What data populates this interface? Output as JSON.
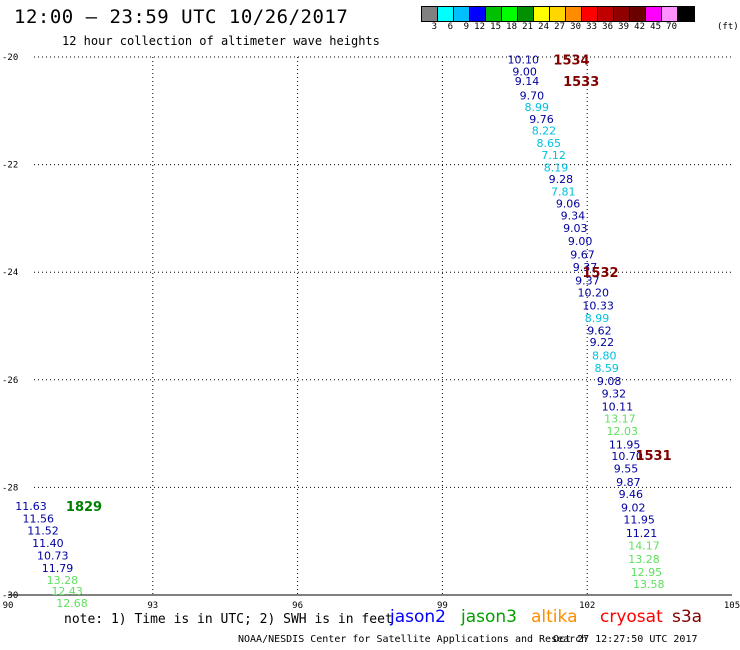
{
  "header": {
    "title": "12:00 – 23:59 UTC 10/26/2017",
    "subtitle": "12 hour collection of altimeter wave heights"
  },
  "colorbar": {
    "colors": [
      "#808080",
      "#00ffff",
      "#00bfff",
      "#0000ff",
      "#00c000",
      "#00ff00",
      "#009000",
      "#ffff00",
      "#ffd700",
      "#ff8c00",
      "#ff0000",
      "#c00000",
      "#900000",
      "#6b0000",
      "#ff00ff",
      "#ff90ff",
      "#000000"
    ],
    "labels": [
      "3",
      "6",
      "9",
      "12",
      "15",
      "18",
      "21",
      "24",
      "27",
      "30",
      "33",
      "36",
      "39",
      "42",
      "45",
      "70"
    ],
    "unit": "(ft)"
  },
  "axes": {
    "x_ticks": [
      90,
      93,
      96,
      99,
      102,
      105
    ],
    "y_ticks": [
      -20,
      -22,
      -24,
      -26,
      -28,
      -30
    ],
    "x_range": [
      90,
      105
    ],
    "y_range": [
      -30,
      -20
    ]
  },
  "track_labels": [
    {
      "text": "1534",
      "lon": 101.3,
      "lat": -20.05
    },
    {
      "text": "1533",
      "lon": 101.5,
      "lat": -20.45
    },
    {
      "text": "1532",
      "lon": 101.9,
      "lat": -24.0
    },
    {
      "text": "1531",
      "lon": 103.0,
      "lat": -27.4
    },
    {
      "text": "1829",
      "lon": 91.2,
      "lat": -28.35
    }
  ],
  "measurements": [
    {
      "v": "10.10",
      "lon": 100.35,
      "lat": -20.05
    },
    {
      "v": "9.00",
      "lon": 100.45,
      "lat": -20.27
    },
    {
      "v": "9.14",
      "lon": 100.5,
      "lat": -20.45
    },
    {
      "v": "9.70",
      "lon": 100.6,
      "lat": -20.72
    },
    {
      "v": "8.99",
      "lon": 100.7,
      "lat": -20.93
    },
    {
      "v": "9.76",
      "lon": 100.8,
      "lat": -21.15
    },
    {
      "v": "8.22",
      "lon": 100.85,
      "lat": -21.37
    },
    {
      "v": "8.65",
      "lon": 100.95,
      "lat": -21.6
    },
    {
      "v": "7.12",
      "lon": 101.05,
      "lat": -21.82
    },
    {
      "v": "8.19",
      "lon": 101.1,
      "lat": -22.05
    },
    {
      "v": "9.28",
      "lon": 101.2,
      "lat": -22.27
    },
    {
      "v": "7.81",
      "lon": 101.25,
      "lat": -22.5
    },
    {
      "v": "9.06",
      "lon": 101.35,
      "lat": -22.72
    },
    {
      "v": "9.34",
      "lon": 101.45,
      "lat": -22.95
    },
    {
      "v": "9.03",
      "lon": 101.5,
      "lat": -23.18
    },
    {
      "v": "9.00",
      "lon": 101.6,
      "lat": -23.42
    },
    {
      "v": "9.67",
      "lon": 101.65,
      "lat": -23.67
    },
    {
      "v": "9.37",
      "lon": 101.7,
      "lat": -23.9
    },
    {
      "v": "9.37",
      "lon": 101.75,
      "lat": -24.15
    },
    {
      "v": "10.20",
      "lon": 101.8,
      "lat": -24.38
    },
    {
      "v": "10.33",
      "lon": 101.9,
      "lat": -24.62
    },
    {
      "v": "8.99",
      "lon": 101.95,
      "lat": -24.85
    },
    {
      "v": "9.62",
      "lon": 102.0,
      "lat": -25.08
    },
    {
      "v": "9.22",
      "lon": 102.05,
      "lat": -25.3
    },
    {
      "v": "8.80",
      "lon": 102.1,
      "lat": -25.55
    },
    {
      "v": "8.59",
      "lon": 102.15,
      "lat": -25.78
    },
    {
      "v": "9.08",
      "lon": 102.2,
      "lat": -26.02
    },
    {
      "v": "9.32",
      "lon": 102.3,
      "lat": -26.25
    },
    {
      "v": "10.11",
      "lon": 102.3,
      "lat": -26.5
    },
    {
      "v": "13.17",
      "lon": 102.35,
      "lat": -26.72
    },
    {
      "v": "12.03",
      "lon": 102.4,
      "lat": -26.95
    },
    {
      "v": "11.95",
      "lon": 102.45,
      "lat": -27.2
    },
    {
      "v": "10.70",
      "lon": 102.5,
      "lat": -27.42
    },
    {
      "v": "9.55",
      "lon": 102.55,
      "lat": -27.65
    },
    {
      "v": "9.87",
      "lon": 102.6,
      "lat": -27.9
    },
    {
      "v": "9.46",
      "lon": 102.65,
      "lat": -28.12
    },
    {
      "v": "9.02",
      "lon": 102.7,
      "lat": -28.37
    },
    {
      "v": "11.95",
      "lon": 102.75,
      "lat": -28.6
    },
    {
      "v": "11.21",
      "lon": 102.8,
      "lat": -28.85
    },
    {
      "v": "14.17",
      "lon": 102.85,
      "lat": -29.08
    },
    {
      "v": "13.28",
      "lon": 102.85,
      "lat": -29.33
    },
    {
      "v": "12.95",
      "lon": 102.9,
      "lat": -29.57
    },
    {
      "v": "13.58",
      "lon": 102.95,
      "lat": -29.8
    },
    {
      "v": "11.63",
      "lon": 90.15,
      "lat": -28.35
    },
    {
      "v": "11.56",
      "lon": 90.3,
      "lat": -28.58
    },
    {
      "v": "11.52",
      "lon": 90.4,
      "lat": -28.8
    },
    {
      "v": "11.40",
      "lon": 90.5,
      "lat": -29.03
    },
    {
      "v": "10.73",
      "lon": 90.6,
      "lat": -29.27
    },
    {
      "v": "11.79",
      "lon": 90.7,
      "lat": -29.5
    },
    {
      "v": "13.28",
      "lon": 90.8,
      "lat": -29.72
    },
    {
      "v": "12.43",
      "lon": 90.9,
      "lat": -29.93
    },
    {
      "v": "12.68",
      "lon": 91.0,
      "lat": -30.15
    }
  ],
  "footer": {
    "note": "note: 1) Time is in UTC; 2) SWH is in feet",
    "satellites": [
      {
        "name": "jason2",
        "color": "#0000ff"
      },
      {
        "name": "jason3",
        "color": "#00a000"
      },
      {
        "name": "altika",
        "color": "#ff8c00"
      },
      {
        "name": "cryosat",
        "color": "#ff0000"
      },
      {
        "name": "s3a",
        "color": "#800000"
      }
    ],
    "credit": "NOAA/NESDIS Center for Satellite Applications and Research",
    "timestamp": "Oct 27 12:27:50 UTC 2017"
  },
  "colors": {
    "track_label": "#800000",
    "track_label_1829": "#008000",
    "tier1": "#00c0e0",
    "tier2": "#0000a0",
    "tier3": "#60e060"
  }
}
